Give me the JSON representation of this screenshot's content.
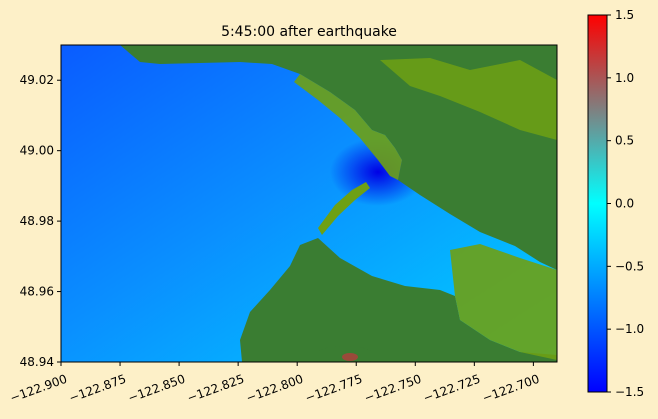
{
  "chart_data": {
    "type": "heatmap",
    "title": "5:45:00 after earthquake",
    "xlabel": "",
    "ylabel": "",
    "xlim": [
      -122.9,
      -122.69
    ],
    "ylim": [
      48.94,
      49.03
    ],
    "xticks": [
      {
        "value": -122.9,
        "label": "−122.900"
      },
      {
        "value": -122.875,
        "label": "−122.875"
      },
      {
        "value": -122.85,
        "label": "−122.850"
      },
      {
        "value": -122.825,
        "label": "−122.825"
      },
      {
        "value": -122.8,
        "label": "−122.800"
      },
      {
        "value": -122.775,
        "label": "−122.775"
      },
      {
        "value": -122.75,
        "label": "−122.750"
      },
      {
        "value": -122.725,
        "label": "−122.725"
      },
      {
        "value": -122.7,
        "label": "−122.700"
      }
    ],
    "yticks": [
      {
        "value": 48.94,
        "label": "48.94"
      },
      {
        "value": 48.96,
        "label": "48.96"
      },
      {
        "value": 48.98,
        "label": "48.98"
      },
      {
        "value": 49.0,
        "label": "49.00"
      },
      {
        "value": 49.02,
        "label": "49.02"
      }
    ],
    "colorbar": {
      "range": [
        -1.5,
        1.5
      ],
      "ticks": [
        {
          "value": 1.5,
          "label": "1.5"
        },
        {
          "value": 1.0,
          "label": "1.0"
        },
        {
          "value": 0.5,
          "label": "0.5"
        },
        {
          "value": 0.0,
          "label": "0.0"
        },
        {
          "value": -0.5,
          "label": "−0.5"
        },
        {
          "value": -1.0,
          "label": "−1.0"
        },
        {
          "value": -1.5,
          "label": "−1.5"
        }
      ],
      "colors": [
        "#0000ff",
        "#00ffff",
        "#ff0000"
      ]
    },
    "land_color": "#3a7d32",
    "shallow_color": "#6ea014"
  }
}
